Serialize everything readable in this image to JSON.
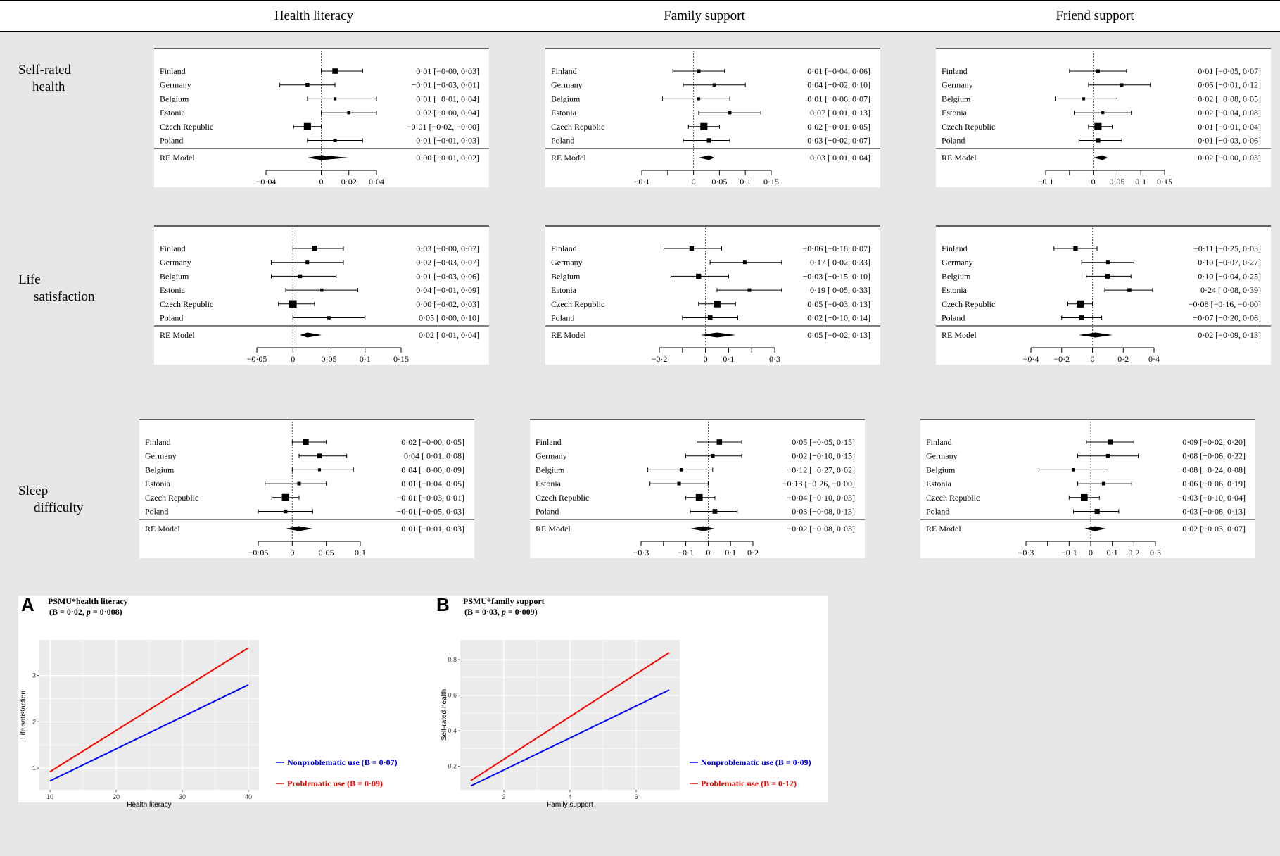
{
  "column_headers": [
    "Health literacy",
    "Family support",
    "Friend support"
  ],
  "row_headers": [
    {
      "line1": "Self-rated",
      "line2": "health"
    },
    {
      "line1": "Life",
      "line2": "satisfaction"
    },
    {
      "line1": "Sleep",
      "line2": "difficulty"
    }
  ],
  "chart_data": [
    {
      "type": "forest",
      "title": "Self-rated health × Health literacy",
      "xlim": [
        -0.04,
        0.04
      ],
      "ticks": [
        -0.04,
        0,
        0.02,
        0.04
      ],
      "tick_labels": [
        "−0·04",
        "0",
        "0·02",
        "0·04"
      ],
      "studies": [
        {
          "name": "Finland",
          "est": 0.01,
          "lo": -0.0,
          "hi": 0.03,
          "w": 0.6,
          "label": "0·01 [−0·00,  0·03]"
        },
        {
          "name": "Germany",
          "est": -0.01,
          "lo": -0.03,
          "hi": 0.01,
          "w": 0.35,
          "label": "−0·01 [−0·03,  0·01]"
        },
        {
          "name": "Belgium",
          "est": 0.01,
          "lo": -0.01,
          "hi": 0.04,
          "w": 0.2,
          "label": "0·01 [−0·01,  0·04]"
        },
        {
          "name": "Estonia",
          "est": 0.02,
          "lo": -0.0,
          "hi": 0.04,
          "w": 0.25,
          "label": "0·02 [−0·00,  0·04]"
        },
        {
          "name": "Czech Republic",
          "est": -0.01,
          "lo": -0.02,
          "hi": -0.0,
          "w": 0.9,
          "label": "−0·01 [−0·02, −0·00]"
        },
        {
          "name": "Poland",
          "est": 0.01,
          "lo": -0.01,
          "hi": 0.03,
          "w": 0.3,
          "label": "0·01 [−0·01,  0·03]"
        }
      ],
      "re": {
        "name": "RE Model",
        "est": 0.0,
        "lo": -0.01,
        "hi": 0.02,
        "label": "0·00 [−0·01,  0·02]"
      }
    },
    {
      "type": "forest",
      "title": "Self-rated health × Family support",
      "xlim": [
        -0.1,
        0.15
      ],
      "ticks": [
        -0.1,
        -0.05,
        0,
        0.05,
        0.1,
        0.15
      ],
      "tick_labels": [
        "−0·1",
        "",
        "0",
        "0·05",
        "0·1",
        "0·15"
      ],
      "studies": [
        {
          "name": "Finland",
          "est": 0.01,
          "lo": -0.04,
          "hi": 0.06,
          "w": 0.3,
          "label": "0·01 [−0·04, 0·06]"
        },
        {
          "name": "Germany",
          "est": 0.04,
          "lo": -0.02,
          "hi": 0.1,
          "w": 0.25,
          "label": "0·04 [−0·02, 0·10]"
        },
        {
          "name": "Belgium",
          "est": 0.01,
          "lo": -0.06,
          "hi": 0.07,
          "w": 0.2,
          "label": "0·01 [−0·06, 0·07]"
        },
        {
          "name": "Estonia",
          "est": 0.07,
          "lo": 0.01,
          "hi": 0.13,
          "w": 0.25,
          "label": "0·07 [ 0·01, 0·13]"
        },
        {
          "name": "Czech Republic",
          "est": 0.02,
          "lo": -0.01,
          "hi": 0.05,
          "w": 0.9,
          "label": "0·02 [−0·01, 0·05]"
        },
        {
          "name": "Poland",
          "est": 0.03,
          "lo": -0.02,
          "hi": 0.07,
          "w": 0.45,
          "label": "0·03 [−0·02, 0·07]"
        }
      ],
      "re": {
        "name": "RE Model",
        "est": 0.03,
        "lo": 0.01,
        "hi": 0.04,
        "label": "0·03 [ 0·01, 0·04]"
      }
    },
    {
      "type": "forest",
      "title": "Self-rated health × Friend support",
      "xlim": [
        -0.1,
        0.15
      ],
      "ticks": [
        -0.1,
        -0.05,
        0,
        0.05,
        0.1,
        0.15
      ],
      "tick_labels": [
        "−0·1",
        "",
        "0",
        "0·05",
        "0·1",
        "0·15"
      ],
      "studies": [
        {
          "name": "Finland",
          "est": 0.01,
          "lo": -0.05,
          "hi": 0.07,
          "w": 0.3,
          "label": "0·01 [−0·05, 0·07]"
        },
        {
          "name": "Germany",
          "est": 0.06,
          "lo": -0.01,
          "hi": 0.12,
          "w": 0.25,
          "label": "0·06 [−0·01, 0·12]"
        },
        {
          "name": "Belgium",
          "est": -0.02,
          "lo": -0.08,
          "hi": 0.05,
          "w": 0.2,
          "label": "−0·02 [−0·08, 0·05]"
        },
        {
          "name": "Estonia",
          "est": 0.02,
          "lo": -0.04,
          "hi": 0.08,
          "w": 0.2,
          "label": "0·02 [−0·04, 0·08]"
        },
        {
          "name": "Czech Republic",
          "est": 0.01,
          "lo": -0.01,
          "hi": 0.04,
          "w": 0.9,
          "label": "0·01 [−0·01, 0·04]"
        },
        {
          "name": "Poland",
          "est": 0.01,
          "lo": -0.03,
          "hi": 0.06,
          "w": 0.45,
          "label": "0·01 [−0·03, 0·06]"
        }
      ],
      "re": {
        "name": "RE Model",
        "est": 0.02,
        "lo": -0.0,
        "hi": 0.03,
        "label": "0·02 [−0·00, 0·03]"
      }
    },
    {
      "type": "forest",
      "title": "Life satisfaction × Health literacy",
      "xlim": [
        -0.05,
        0.15
      ],
      "ticks": [
        -0.05,
        0,
        0.05,
        0.1,
        0.15
      ],
      "tick_labels": [
        "−0·05",
        "0",
        "0·05",
        "0·1",
        "0·15"
      ],
      "studies": [
        {
          "name": "Finland",
          "est": 0.03,
          "lo": -0.0,
          "hi": 0.07,
          "w": 0.6,
          "label": "0·03 [−0·00, 0·07]"
        },
        {
          "name": "Germany",
          "est": 0.02,
          "lo": -0.03,
          "hi": 0.07,
          "w": 0.3,
          "label": "0·02 [−0·03, 0·07]"
        },
        {
          "name": "Belgium",
          "est": 0.01,
          "lo": -0.03,
          "hi": 0.06,
          "w": 0.35,
          "label": "0·01 [−0·03, 0·06]"
        },
        {
          "name": "Estonia",
          "est": 0.04,
          "lo": -0.01,
          "hi": 0.09,
          "w": 0.25,
          "label": "0·04 [−0·01, 0·09]"
        },
        {
          "name": "Czech Republic",
          "est": 0.0,
          "lo": -0.02,
          "hi": 0.03,
          "w": 0.95,
          "label": "0·00 [−0·02, 0·03]"
        },
        {
          "name": "Poland",
          "est": 0.05,
          "lo": 0.0,
          "hi": 0.1,
          "w": 0.25,
          "label": "0·05 [ 0·00, 0·10]"
        }
      ],
      "re": {
        "name": "RE Model",
        "est": 0.02,
        "lo": 0.01,
        "hi": 0.04,
        "label": "0·02 [ 0·01, 0·04]"
      }
    },
    {
      "type": "forest",
      "title": "Life satisfaction × Family support",
      "xlim": [
        -0.2,
        0.3
      ],
      "ticks": [
        -0.2,
        -0.1,
        0,
        0.1,
        0.2,
        0.3
      ],
      "tick_labels": [
        "−0·2",
        "",
        "0",
        "0·1",
        "",
        "0·3"
      ],
      "studies": [
        {
          "name": "Finland",
          "est": -0.06,
          "lo": -0.18,
          "hi": 0.07,
          "w": 0.45,
          "label": "−0·06 [−0·18, 0·07]"
        },
        {
          "name": "Germany",
          "est": 0.17,
          "lo": 0.02,
          "hi": 0.33,
          "w": 0.3,
          "label": "0·17 [ 0·02, 0·33]"
        },
        {
          "name": "Belgium",
          "est": -0.03,
          "lo": -0.15,
          "hi": 0.1,
          "w": 0.55,
          "label": "−0·03 [−0·15, 0·10]"
        },
        {
          "name": "Estonia",
          "est": 0.19,
          "lo": 0.05,
          "hi": 0.33,
          "w": 0.3,
          "label": "0·19 [ 0·05, 0·33]"
        },
        {
          "name": "Czech Republic",
          "est": 0.05,
          "lo": -0.03,
          "hi": 0.13,
          "w": 0.85,
          "label": "0·05 [−0·03, 0·13]"
        },
        {
          "name": "Poland",
          "est": 0.02,
          "lo": -0.1,
          "hi": 0.14,
          "w": 0.5,
          "label": "0·02 [−0·10, 0·14]"
        }
      ],
      "re": {
        "name": "RE Model",
        "est": 0.05,
        "lo": -0.02,
        "hi": 0.13,
        "label": "0·05 [−0·02, 0·13]"
      }
    },
    {
      "type": "forest",
      "title": "Life satisfaction × Friend support",
      "xlim": [
        -0.4,
        0.4
      ],
      "ticks": [
        -0.4,
        -0.2,
        0,
        0.2,
        0.4
      ],
      "tick_labels": [
        "−0·4",
        "−0·2",
        "0",
        "0·2",
        "0·4"
      ],
      "studies": [
        {
          "name": "Finland",
          "est": -0.11,
          "lo": -0.25,
          "hi": 0.03,
          "w": 0.45,
          "label": "−0·11 [−0·25,  0·03]"
        },
        {
          "name": "Germany",
          "est": 0.1,
          "lo": -0.07,
          "hi": 0.27,
          "w": 0.3,
          "label": "0·10 [−0·07,  0·27]"
        },
        {
          "name": "Belgium",
          "est": 0.1,
          "lo": -0.04,
          "hi": 0.25,
          "w": 0.5,
          "label": "0·10 [−0·04,  0·25]"
        },
        {
          "name": "Estonia",
          "est": 0.24,
          "lo": 0.08,
          "hi": 0.39,
          "w": 0.35,
          "label": "0·24 [ 0·08,  0·39]"
        },
        {
          "name": "Czech Republic",
          "est": -0.08,
          "lo": -0.16,
          "hi": -0.0,
          "w": 0.9,
          "label": "−0·08 [−0·16, −0·00]"
        },
        {
          "name": "Poland",
          "est": -0.07,
          "lo": -0.2,
          "hi": 0.06,
          "w": 0.5,
          "label": "−0·07 [−0·20,  0·06]"
        }
      ],
      "re": {
        "name": "RE Model",
        "est": 0.02,
        "lo": -0.09,
        "hi": 0.13,
        "label": "0·02 [−0·09,  0·13]"
      }
    },
    {
      "type": "forest",
      "title": "Sleep difficulty × Health literacy",
      "xlim": [
        -0.05,
        0.1
      ],
      "ticks": [
        -0.05,
        0,
        0.05,
        0.1
      ],
      "tick_labels": [
        "−0·05",
        "0",
        "0·05",
        "0·1"
      ],
      "studies": [
        {
          "name": "Finland",
          "est": 0.02,
          "lo": -0.0,
          "hi": 0.05,
          "w": 0.65,
          "label": "0·02 [−0·00, 0·05]"
        },
        {
          "name": "Germany",
          "est": 0.04,
          "lo": 0.01,
          "hi": 0.08,
          "w": 0.5,
          "label": "0·04 [ 0·01, 0·08]"
        },
        {
          "name": "Belgium",
          "est": 0.04,
          "lo": -0.0,
          "hi": 0.09,
          "w": 0.2,
          "label": "0·04 [−0·00, 0·09]"
        },
        {
          "name": "Estonia",
          "est": 0.01,
          "lo": -0.04,
          "hi": 0.05,
          "w": 0.3,
          "label": "0·01 [−0·04, 0·05]"
        },
        {
          "name": "Czech Republic",
          "est": -0.01,
          "lo": -0.03,
          "hi": 0.01,
          "w": 0.9,
          "label": "−0·01 [−0·03, 0·01]"
        },
        {
          "name": "Poland",
          "est": -0.01,
          "lo": -0.05,
          "hi": 0.03,
          "w": 0.35,
          "label": "−0·01 [−0·05, 0·03]"
        }
      ],
      "re": {
        "name": "RE Model",
        "est": 0.01,
        "lo": -0.01,
        "hi": 0.03,
        "label": "0·01 [−0·01, 0·03]"
      }
    },
    {
      "type": "forest",
      "title": "Sleep difficulty × Family support",
      "xlim": [
        -0.3,
        0.2
      ],
      "ticks": [
        -0.3,
        -0.2,
        -0.1,
        0,
        0.1,
        0.2
      ],
      "tick_labels": [
        "−0·3",
        "",
        "−0·1",
        "0",
        "0·1",
        "0·2"
      ],
      "studies": [
        {
          "name": "Finland",
          "est": 0.05,
          "lo": -0.05,
          "hi": 0.15,
          "w": 0.6,
          "label": "0·05 [−0·05,  0·15]"
        },
        {
          "name": "Germany",
          "est": 0.02,
          "lo": -0.1,
          "hi": 0.15,
          "w": 0.35,
          "label": "0·02 [−0·10,  0·15]"
        },
        {
          "name": "Belgium",
          "est": -0.12,
          "lo": -0.27,
          "hi": 0.02,
          "w": 0.25,
          "label": "−0·12 [−0·27,  0·02]"
        },
        {
          "name": "Estonia",
          "est": -0.13,
          "lo": -0.26,
          "hi": -0.0,
          "w": 0.3,
          "label": "−0·13 [−0·26, −0·00]"
        },
        {
          "name": "Czech Republic",
          "est": -0.04,
          "lo": -0.1,
          "hi": 0.03,
          "w": 0.85,
          "label": "−0·04 [−0·10,  0·03]"
        },
        {
          "name": "Poland",
          "est": 0.03,
          "lo": -0.08,
          "hi": 0.13,
          "w": 0.5,
          "label": "0·03 [−0·08,  0·13]"
        }
      ],
      "re": {
        "name": "RE Model",
        "est": -0.02,
        "lo": -0.08,
        "hi": 0.03,
        "label": "−0·02 [−0·08,  0·03]"
      }
    },
    {
      "type": "forest",
      "title": "Sleep difficulty × Friend support",
      "xlim": [
        -0.3,
        0.3
      ],
      "ticks": [
        -0.3,
        -0.2,
        -0.1,
        0,
        0.1,
        0.2,
        0.3
      ],
      "tick_labels": [
        "−0·3",
        "",
        "−0·1",
        "0",
        "0·1",
        "0·2",
        "0·3"
      ],
      "studies": [
        {
          "name": "Finland",
          "est": 0.09,
          "lo": -0.02,
          "hi": 0.2,
          "w": 0.55,
          "label": "0·09 [−0·02, 0·20]"
        },
        {
          "name": "Germany",
          "est": 0.08,
          "lo": -0.06,
          "hi": 0.22,
          "w": 0.35,
          "label": "0·08 [−0·06, 0·22]"
        },
        {
          "name": "Belgium",
          "est": -0.08,
          "lo": -0.24,
          "hi": 0.08,
          "w": 0.25,
          "label": "−0·08 [−0·24, 0·08]"
        },
        {
          "name": "Estonia",
          "est": 0.06,
          "lo": -0.06,
          "hi": 0.19,
          "w": 0.3,
          "label": "0·06 [−0·06, 0·19]"
        },
        {
          "name": "Czech Republic",
          "est": -0.03,
          "lo": -0.1,
          "hi": 0.04,
          "w": 0.85,
          "label": "−0·03 [−0·10, 0·04]"
        },
        {
          "name": "Poland",
          "est": 0.03,
          "lo": -0.08,
          "hi": 0.13,
          "w": 0.55,
          "label": "0·03 [−0·08, 0·13]"
        }
      ],
      "re": {
        "name": "RE Model",
        "est": 0.02,
        "lo": -0.03,
        "hi": 0.07,
        "label": "0·02 [−0·03, 0·07]"
      }
    },
    {
      "type": "line",
      "panel_letter": "A",
      "title_line1": "PSMU*health literacy",
      "title_line2_prefix": "(B = 0·02, ",
      "title_line2_p": "p",
      "title_line2_suffix": " = 0·008)",
      "xlabel": "Health literacy",
      "ylabel": "Life satisfaction",
      "xlim": [
        10,
        40
      ],
      "ylim": [
        0.65,
        3.65
      ],
      "xticks": [
        10,
        20,
        30,
        40
      ],
      "yticks": [
        1,
        2,
        3
      ],
      "series": [
        {
          "name": "Nonproblematic use (B = 0·07)",
          "color": "#0000ff",
          "x": [
            10,
            40
          ],
          "y": [
            0.72,
            2.8
          ]
        },
        {
          "name": "Problematic use (B = 0·09)",
          "color": "#ff0000",
          "x": [
            10,
            40
          ],
          "y": [
            0.92,
            3.6
          ]
        }
      ]
    },
    {
      "type": "line",
      "panel_letter": "B",
      "title_line1": "PSMU*family support",
      "title_line2_prefix": "(B = 0·03, ",
      "title_line2_p": "p",
      "title_line2_suffix": " = 0·009)",
      "xlabel": "Family support",
      "ylabel": "Self-rated health",
      "xlim": [
        1,
        7
      ],
      "ylim": [
        0.1,
        0.88
      ],
      "xticks": [
        2,
        4,
        6
      ],
      "yticks": [
        0.2,
        0.4,
        0.6,
        0.8
      ],
      "series": [
        {
          "name": "Nonproblematic use (B = 0·09)",
          "color": "#0000ff",
          "x": [
            1,
            7
          ],
          "y": [
            0.09,
            0.63
          ]
        },
        {
          "name": "Problematic use (B = 0·12)",
          "color": "#ff0000",
          "x": [
            1,
            7
          ],
          "y": [
            0.12,
            0.84
          ]
        }
      ]
    }
  ]
}
